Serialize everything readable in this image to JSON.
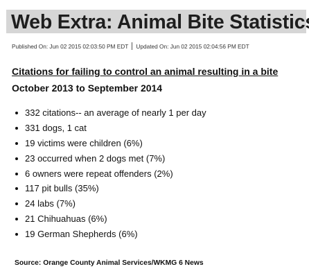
{
  "article": {
    "title": "Web Extra: Animal Bite Statistics",
    "published": "Published On: Jun 02 2015 02:03:50 PM EDT",
    "updated": "Updated On: Jun 02 2015 02:04:56 PM EDT",
    "headline": "Citations for failing to control an animal resulting in a bite",
    "subhead": "October 2013 to September 2014",
    "facts": [
      "332 citations-- an average of nearly 1 per day",
      "331 dogs, 1 cat",
      "19 victims were children (6%)",
      "23 occurred when 2 dogs met (7%)",
      "6 owners were repeat offenders (2%)",
      "117 pit bulls (35%)",
      "24 labs (7%)",
      "21 Chihuahuas (6%)",
      "19 German Shepherds (6%)"
    ],
    "source": "Source: Orange County Animal Services/WKMG 6 News"
  },
  "colors": {
    "title_background": "#d6d6d6",
    "text": "#111111"
  }
}
